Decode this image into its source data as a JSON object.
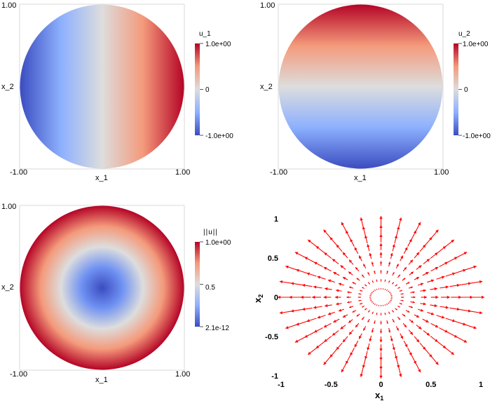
{
  "chart_data": [
    {
      "type": "heatmap",
      "field": "u_1 = x_1",
      "xlabel": "x_1",
      "ylabel": "x_2",
      "xlim": [
        -1.0,
        1.0
      ],
      "ylim": [
        -1.0,
        1.0
      ],
      "x_tick_labels": [
        "-1.00",
        "1.00"
      ],
      "y_tick_labels": [
        "1.00"
      ],
      "colorbar": {
        "title": "u_1",
        "range": [
          -1.0,
          1.0
        ],
        "tick_labels": [
          "1.0e+00",
          "0",
          "-1.0e+00"
        ],
        "colormap": "cool-to-warm",
        "colors": {
          "low": "#3b4cc0",
          "mid": "#dddddd",
          "high": "#b40426"
        }
      }
    },
    {
      "type": "heatmap",
      "field": "u_2 = x_2",
      "xlabel": "x_1",
      "ylabel": "x_2",
      "xlim": [
        -1.0,
        1.0
      ],
      "ylim": [
        -1.0,
        1.0
      ],
      "x_tick_labels": [
        "-1.00",
        "1.00"
      ],
      "y_tick_labels": [
        "1.00"
      ],
      "colorbar": {
        "title": "u_2",
        "range": [
          -1.0,
          1.0
        ],
        "tick_labels": [
          "1.0e+00",
          "0",
          "-1.0e+00"
        ],
        "colormap": "cool-to-warm",
        "colors": {
          "low": "#3b4cc0",
          "mid": "#dddddd",
          "high": "#b40426"
        }
      }
    },
    {
      "type": "heatmap",
      "field": "||u|| = sqrt(x_1^2 + x_2^2)",
      "xlabel": "x_1",
      "ylabel": "x_2",
      "xlim": [
        -1.0,
        1.0
      ],
      "ylim": [
        -1.0,
        1.0
      ],
      "x_tick_labels": [
        "-1.00",
        "1.00"
      ],
      "y_tick_labels": [
        "1.00"
      ],
      "colorbar": {
        "title": "||u||",
        "range": [
          2.1e-12,
          1.0
        ],
        "tick_labels": [
          "1.0e+00",
          "0.5",
          "2.1e-12"
        ],
        "colormap": "cool-to-warm",
        "colors": {
          "low": "#3b4cc0",
          "mid": "#dddddd",
          "high": "#b40426"
        }
      }
    },
    {
      "type": "quiver",
      "field": "u = (x_1, x_2)",
      "xlabel": "x",
      "xlabel_subscript": "1",
      "ylabel": "x",
      "ylabel_subscript": "2",
      "xlim": [
        -1.0,
        1.0
      ],
      "ylim": [
        -1.0,
        1.0
      ],
      "xticks": [
        -1,
        -0.5,
        0,
        0.5,
        1
      ],
      "xtick_labels": [
        "-1",
        "-0.5",
        "0",
        "0.5",
        "1"
      ],
      "yticks": [
        -1,
        -0.5,
        0,
        0.5,
        1
      ],
      "ytick_labels": [
        "-1",
        "-0.5",
        "0",
        "0.5",
        "1"
      ],
      "rings": [
        0.1,
        0.2,
        0.3,
        0.4,
        0.5,
        0.6,
        0.7,
        0.8,
        0.9
      ],
      "directions": 32,
      "arrow_color": "#ff0000"
    }
  ]
}
